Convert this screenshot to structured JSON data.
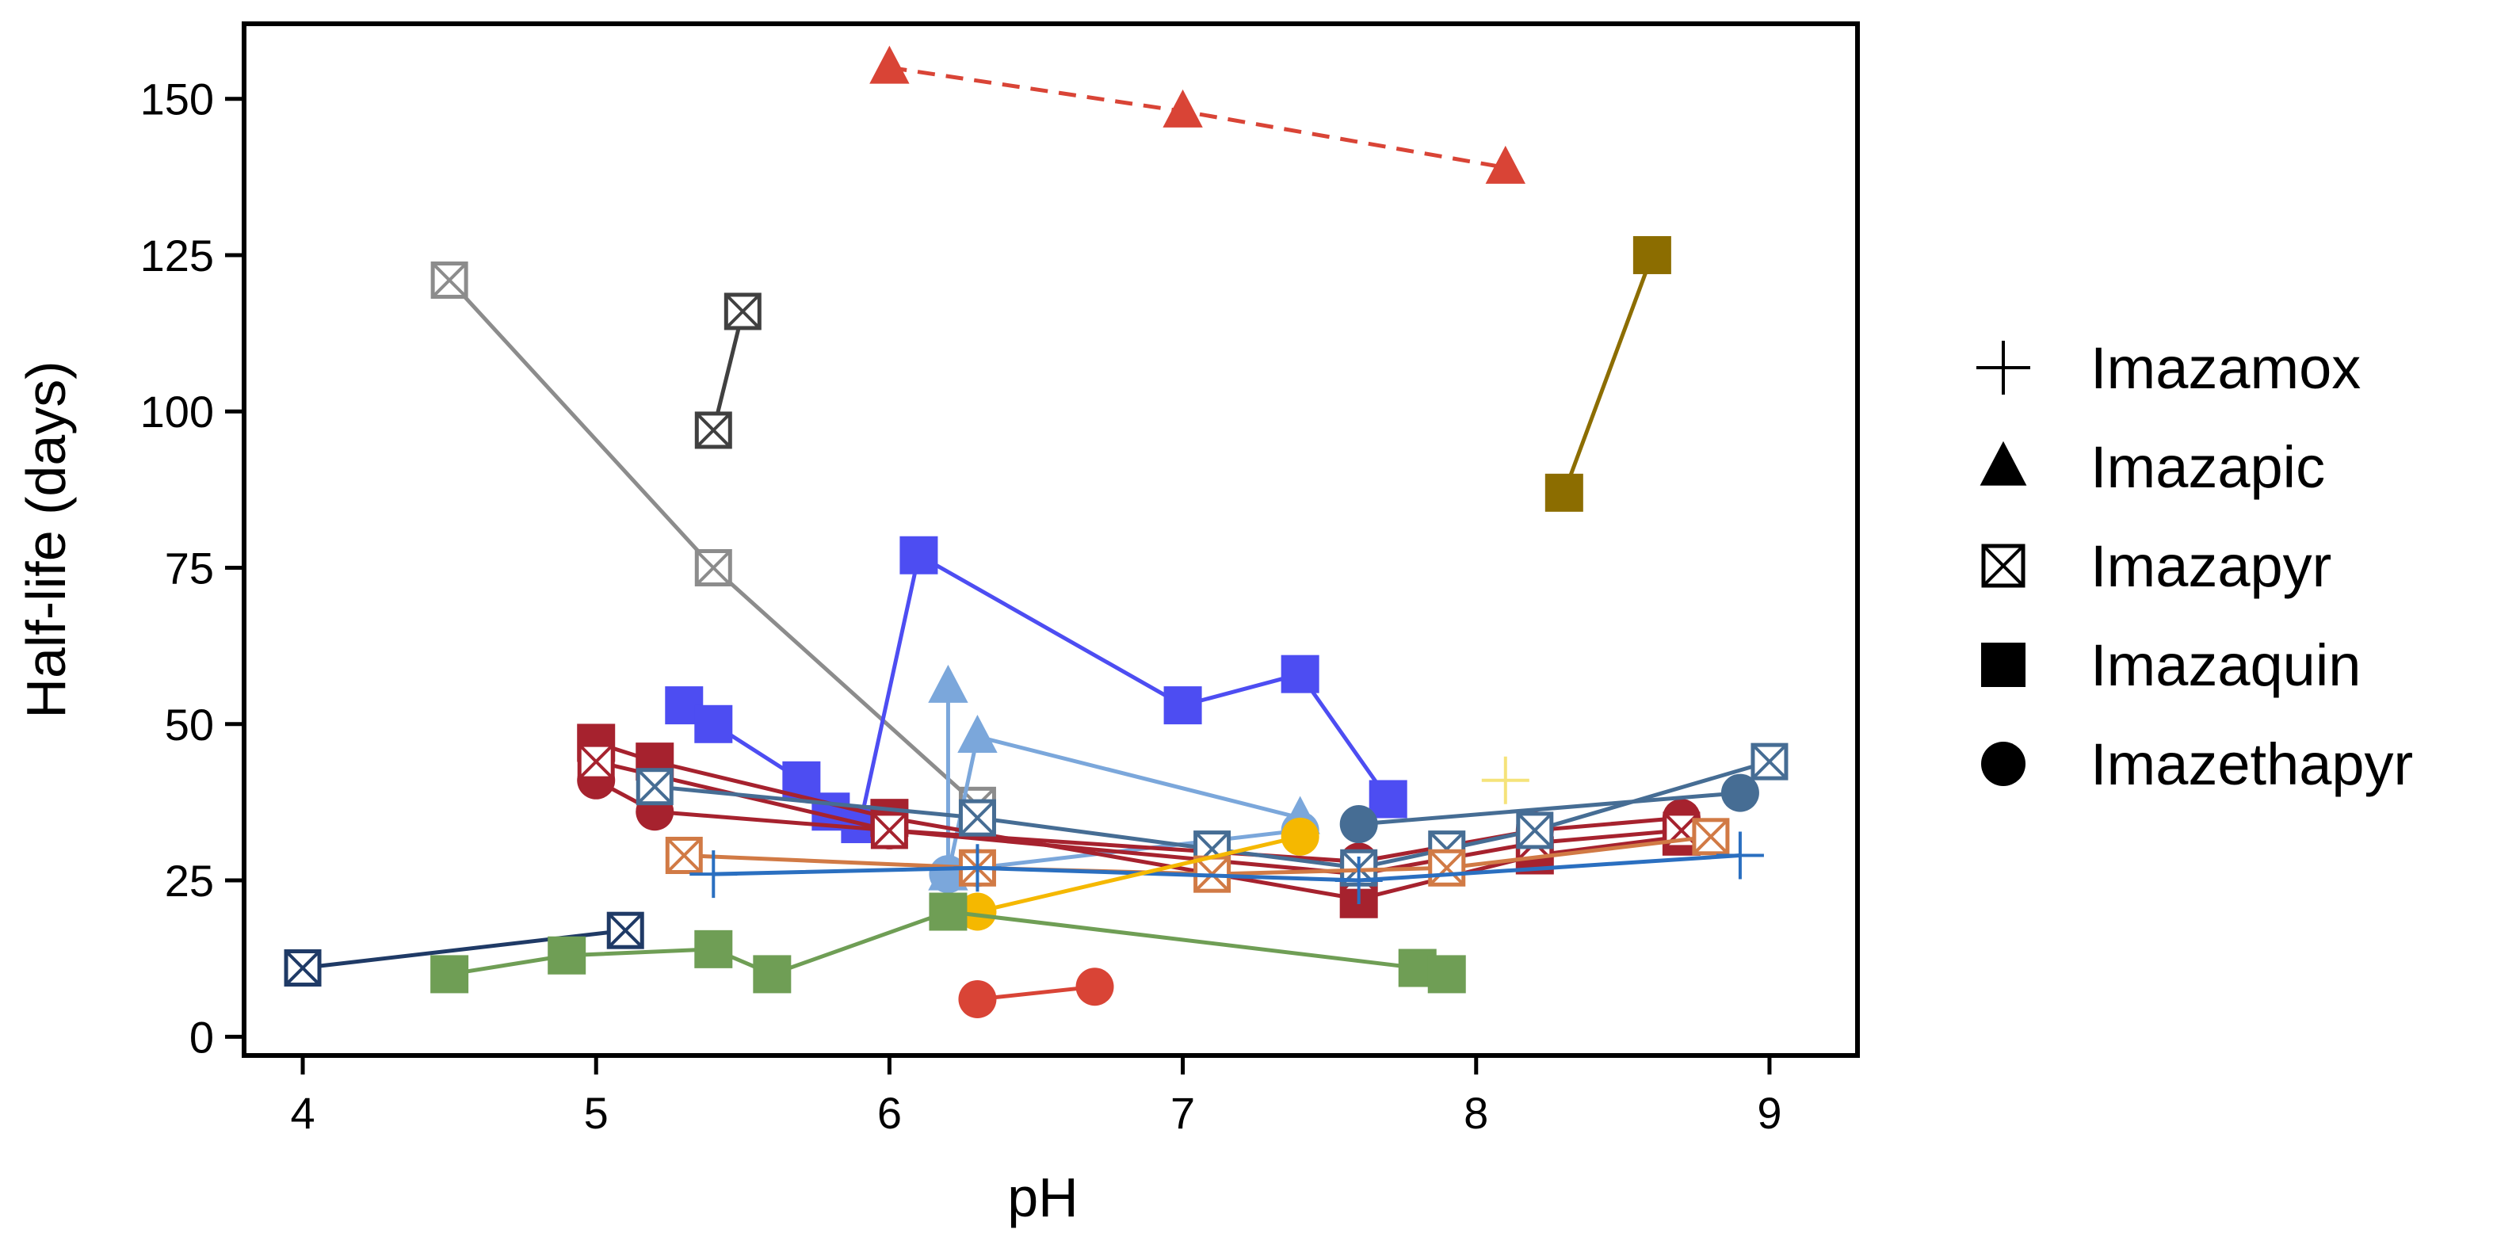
{
  "chart_data": {
    "type": "scatter",
    "title": "",
    "xlabel": "pH",
    "ylabel": "Half-life (days)",
    "xlim": [
      3.8,
      9.3
    ],
    "ylim": [
      -3,
      162
    ],
    "xticks": [
      4,
      5,
      6,
      7,
      8,
      9
    ],
    "xtick_labels": [
      "4",
      "5",
      "6",
      "7",
      "8",
      "9"
    ],
    "yticks": [
      0,
      25,
      50,
      75,
      100,
      125,
      150
    ],
    "ytick_labels": [
      "0",
      "25",
      "50",
      "75",
      "100",
      "125",
      "150"
    ],
    "grid": false,
    "legend_position": "right",
    "legend": [
      {
        "label": "Imazamox",
        "marker": "plus"
      },
      {
        "label": "Imazapic",
        "marker": "triangle"
      },
      {
        "label": "Imazapyr",
        "marker": "boxx"
      },
      {
        "label": "Imazaquin",
        "marker": "square"
      },
      {
        "label": "Imazethapyr",
        "marker": "circle"
      }
    ],
    "series": [
      {
        "name": "Imazapic, red dashed",
        "marker": "triangle",
        "color": "#D94436",
        "dashed": true,
        "points": [
          [
            6.0,
            155
          ],
          [
            7.0,
            148
          ],
          [
            8.1,
            139
          ]
        ]
      },
      {
        "name": "Imazaquin, olive",
        "marker": "square",
        "color": "#8C6D00",
        "points": [
          [
            8.3,
            87
          ],
          [
            8.6,
            125
          ]
        ]
      },
      {
        "name": "Imazapyr, gray",
        "marker": "boxx",
        "color": "#8C8C8C",
        "points": [
          [
            4.5,
            121
          ],
          [
            5.4,
            75
          ],
          [
            6.3,
            37
          ]
        ]
      },
      {
        "name": "Imazapyr, dark gray",
        "marker": "boxx",
        "color": "#404040",
        "points": [
          [
            5.4,
            97
          ],
          [
            5.5,
            116
          ]
        ]
      },
      {
        "name": "Imazaquin, blue",
        "marker": "square",
        "color": "#4D4DF2",
        "points": [
          [
            5.3,
            53
          ],
          [
            5.4,
            50
          ],
          [
            5.7,
            41
          ],
          [
            5.8,
            36
          ],
          [
            5.9,
            34
          ],
          [
            6.1,
            77
          ],
          [
            7.0,
            53
          ],
          [
            7.4,
            58
          ],
          [
            7.7,
            38
          ]
        ]
      },
      {
        "name": "Imazapic, light blue",
        "marker": "triangle",
        "color": "#7BA7DB",
        "points": [
          [
            6.2,
            56
          ],
          [
            6.2,
            26
          ],
          [
            6.3,
            48
          ],
          [
            7.4,
            35
          ]
        ]
      },
      {
        "name": "Imazethapyr, light blue",
        "marker": "circle",
        "color": "#7BA7DB",
        "points": [
          [
            6.2,
            26
          ],
          [
            6.3,
            27
          ],
          [
            7.4,
            33
          ]
        ]
      },
      {
        "name": "Imazaquin, dark red",
        "marker": "square",
        "color": "#A6222E",
        "points": [
          [
            5.0,
            47
          ],
          [
            5.2,
            44
          ],
          [
            6.0,
            35
          ],
          [
            7.6,
            22
          ],
          [
            8.2,
            29
          ],
          [
            8.7,
            32
          ]
        ]
      },
      {
        "name": "Imazethapyr, dark red",
        "marker": "circle",
        "color": "#A6222E",
        "points": [
          [
            5.0,
            41
          ],
          [
            5.2,
            36
          ],
          [
            6.0,
            33
          ],
          [
            7.6,
            28
          ],
          [
            8.2,
            33
          ],
          [
            8.7,
            35
          ]
        ]
      },
      {
        "name": "Imazapyr, dark red",
        "marker": "boxx",
        "color": "#A6222E",
        "points": [
          [
            5.0,
            44
          ],
          [
            6.0,
            33
          ],
          [
            7.6,
            26
          ],
          [
            8.2,
            31
          ],
          [
            8.7,
            33
          ]
        ]
      },
      {
        "name": "Imazapyr, steel blue",
        "marker": "boxx",
        "color": "#466D94",
        "points": [
          [
            5.2,
            40
          ],
          [
            6.3,
            35
          ],
          [
            7.1,
            30
          ],
          [
            7.6,
            27
          ],
          [
            7.9,
            30
          ],
          [
            8.2,
            33
          ],
          [
            9.0,
            44
          ]
        ]
      },
      {
        "name": "Imazethapyr, steel blue",
        "marker": "circle",
        "color": "#466D94",
        "points": [
          [
            7.6,
            34
          ],
          [
            8.9,
            39
          ]
        ]
      },
      {
        "name": "Imazapyr, orange",
        "marker": "boxx",
        "color": "#D17A45",
        "points": [
          [
            5.3,
            29
          ],
          [
            6.3,
            27
          ],
          [
            7.1,
            26
          ],
          [
            7.9,
            27
          ],
          [
            8.8,
            32
          ]
        ]
      },
      {
        "name": "Imazamox, blue",
        "marker": "plus",
        "color": "#2A6FC0",
        "points": [
          [
            5.4,
            26
          ],
          [
            6.3,
            27
          ],
          [
            7.6,
            25
          ],
          [
            8.9,
            29
          ]
        ]
      },
      {
        "name": "Imazamox, light yellow",
        "marker": "plus",
        "color": "#F5E37A",
        "points": [
          [
            8.1,
            41
          ]
        ]
      },
      {
        "name": "Imazethapyr, yellow",
        "marker": "circle",
        "color": "#F5B800",
        "points": [
          [
            6.3,
            20
          ],
          [
            7.4,
            32
          ]
        ]
      },
      {
        "name": "Imazapyr, navy",
        "marker": "boxx",
        "color": "#1F3A66",
        "points": [
          [
            4.0,
            11
          ],
          [
            5.1,
            17
          ]
        ]
      },
      {
        "name": "Imazaquin, green",
        "marker": "square",
        "color": "#6F9E55",
        "points": [
          [
            4.5,
            10
          ],
          [
            4.9,
            13
          ],
          [
            5.4,
            14
          ],
          [
            5.6,
            10
          ],
          [
            6.2,
            20
          ],
          [
            7.8,
            11
          ],
          [
            7.9,
            10
          ]
        ]
      },
      {
        "name": "Imazethapyr, red",
        "marker": "circle",
        "color": "#D94436",
        "points": [
          [
            6.3,
            6
          ],
          [
            6.7,
            8
          ]
        ]
      }
    ]
  }
}
